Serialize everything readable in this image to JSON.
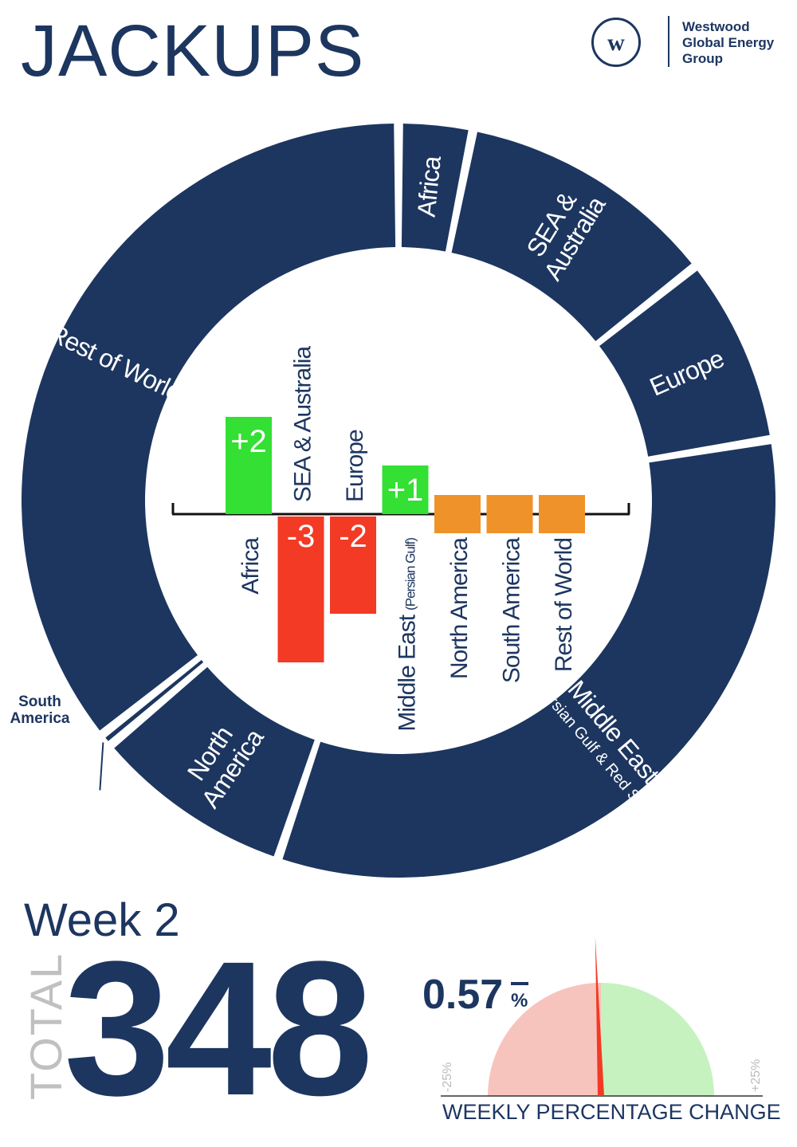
{
  "header": {
    "title": "JACKUPS",
    "logo_mark": "w",
    "brand_lines": [
      "Westwood",
      "Global Energy",
      "Group"
    ]
  },
  "summary": {
    "week_label": "Week 2",
    "total_label": "TOTAL",
    "total_value": "348",
    "weekly_change_value": "0.57",
    "weekly_change_unit": "%",
    "weekly_change_direction": "down",
    "gauge_caption": "WEEKLY PERCENTAGE CHANGE",
    "gauge_min_label": "-25%",
    "gauge_max_label": "+25%"
  },
  "colors": {
    "navy": "#1d3660",
    "increase": "#33e033",
    "decrease": "#f23a24",
    "no_change": "#f0922a",
    "gauge_negative": "#f7c4bd",
    "gauge_positive": "#c6f2c0",
    "needle": "#f23a24"
  },
  "chart_data": [
    {
      "type": "pie",
      "variant": "donut",
      "slices": [
        {
          "name": "Africa",
          "label_lines": [
            "Africa"
          ],
          "value": 11
        },
        {
          "name": "SEA & Australia",
          "label_lines": [
            "SEA &",
            "Australia"
          ],
          "value": 39
        },
        {
          "name": "Europe",
          "label_lines": [
            "Europe"
          ],
          "value": 28
        },
        {
          "name": "Middle East (Persian Gulf & Red Sea)",
          "label_lines": [
            "Middle East"
          ],
          "label_note": "(Persian Gulf & Red Sea)",
          "value": 114
        },
        {
          "name": "North America",
          "label_lines": [
            "North",
            "America"
          ],
          "value": 30
        },
        {
          "name": "South America",
          "label_lines": [
            "South",
            "America"
          ],
          "value": 2
        },
        {
          "name": "Rest of World",
          "label_lines": [
            "Rest of World"
          ],
          "value": 124
        }
      ]
    },
    {
      "type": "bar",
      "title": "",
      "categories": [
        "Africa",
        "SEA & Australia",
        "Europe",
        "Middle East (Persian Gulf)",
        "North America",
        "South America",
        "Rest of World"
      ],
      "category_labels": [
        {
          "main": "Africa",
          "note": ""
        },
        {
          "main": "SEA & Australia",
          "note": ""
        },
        {
          "main": "Europe",
          "note": ""
        },
        {
          "main": "Middle East",
          "note": "(Persian Gulf)"
        },
        {
          "main": "North America",
          "note": ""
        },
        {
          "main": "South America",
          "note": ""
        },
        {
          "main": "Rest of World",
          "note": ""
        }
      ],
      "values": [
        2,
        -3,
        -2,
        1,
        0,
        0,
        0
      ],
      "value_labels": [
        "+2",
        "-3",
        "-2",
        "+1",
        "",
        "",
        ""
      ],
      "ylim": [
        -3.2,
        2.2
      ],
      "grid": false
    },
    {
      "type": "gauge",
      "value": -0.57,
      "range": [
        -25,
        25
      ]
    }
  ]
}
